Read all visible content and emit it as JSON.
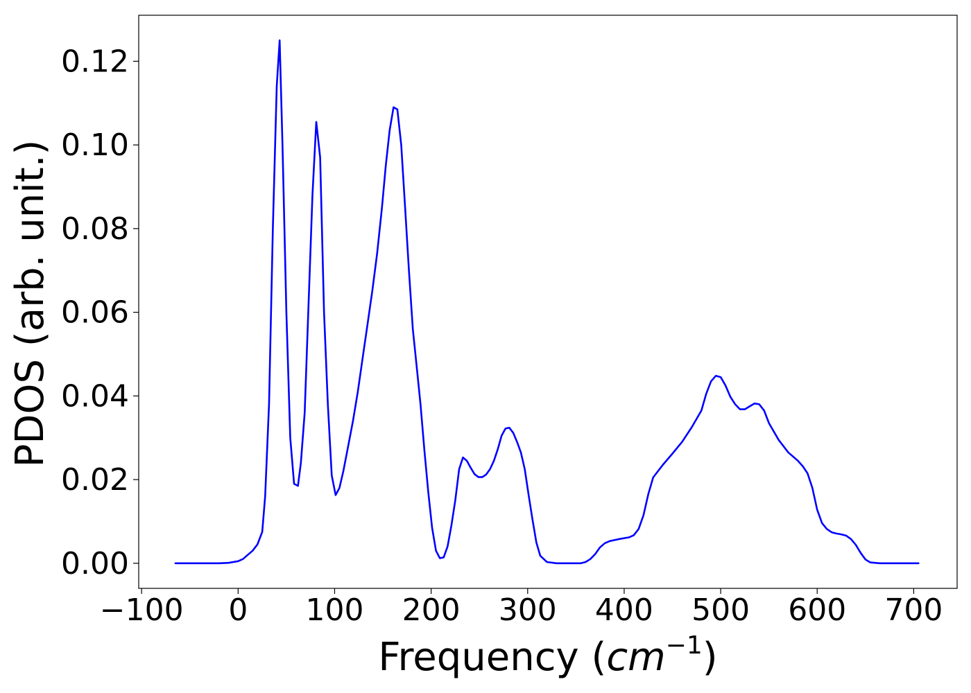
{
  "chart_data": {
    "type": "line",
    "title": "",
    "xlabel": "Frequency (",
    "xlabel_italic": "cm",
    "xlabel_superscript": "−1",
    "xlabel_suffix": ")",
    "ylabel": "PDOS (arb. unit.)",
    "xlim": [
      -103,
      745
    ],
    "ylim": [
      -0.006,
      0.131
    ],
    "x_ticks": [
      -100,
      0,
      100,
      200,
      300,
      400,
      500,
      600,
      700
    ],
    "x_tick_labels": [
      "−100",
      "0",
      "100",
      "200",
      "300",
      "400",
      "500",
      "600",
      "700"
    ],
    "y_ticks": [
      0.0,
      0.02,
      0.04,
      0.06,
      0.08,
      0.1,
      0.12
    ],
    "y_tick_labels": [
      "0.00",
      "0.02",
      "0.04",
      "0.06",
      "0.08",
      "0.10",
      "0.12"
    ],
    "grid": false,
    "legend": "none",
    "line_color": "#0000ff",
    "series": [
      {
        "x": [
          -65,
          -20,
          -10,
          0,
          5,
          10,
          15,
          20,
          25,
          28,
          32,
          36,
          40,
          43,
          46,
          50,
          54,
          58,
          62,
          65,
          69,
          73,
          77,
          81,
          85,
          89,
          93,
          97,
          101,
          105,
          109,
          114,
          119,
          124,
          129,
          134,
          139,
          144,
          149,
          153,
          157,
          161,
          165,
          169,
          173,
          177,
          181,
          185,
          189,
          193,
          197,
          201,
          205,
          209,
          213,
          217,
          221,
          225,
          229,
          233,
          237,
          241,
          245,
          249,
          253,
          257,
          261,
          265,
          269,
          273,
          277,
          281,
          285,
          289,
          293,
          297,
          301,
          305,
          309,
          313,
          320,
          330,
          345,
          355,
          360,
          365,
          370,
          375,
          380,
          385,
          395,
          405,
          410,
          415,
          420,
          425,
          430,
          435,
          440,
          450,
          460,
          470,
          480,
          485,
          490,
          495,
          500,
          505,
          510,
          515,
          520,
          525,
          530,
          535,
          540,
          545,
          550,
          560,
          570,
          580,
          585,
          590,
          595,
          600,
          605,
          610,
          615,
          620,
          625,
          630,
          635,
          640,
          645,
          650,
          655,
          665,
          680,
          705
        ],
        "y": [
          0.0,
          0.0,
          0.0001,
          0.0005,
          0.001,
          0.002,
          0.003,
          0.0045,
          0.0075,
          0.016,
          0.038,
          0.08,
          0.114,
          0.125,
          0.1,
          0.06,
          0.03,
          0.019,
          0.0185,
          0.024,
          0.036,
          0.062,
          0.088,
          0.1055,
          0.097,
          0.06,
          0.038,
          0.021,
          0.0163,
          0.018,
          0.022,
          0.028,
          0.034,
          0.041,
          0.049,
          0.057,
          0.065,
          0.074,
          0.085,
          0.095,
          0.1035,
          0.109,
          0.1085,
          0.1,
          0.085,
          0.07,
          0.056,
          0.047,
          0.038,
          0.027,
          0.017,
          0.0085,
          0.003,
          0.0012,
          0.0014,
          0.004,
          0.009,
          0.015,
          0.0225,
          0.0253,
          0.0245,
          0.0228,
          0.0213,
          0.0206,
          0.0206,
          0.0212,
          0.0225,
          0.0245,
          0.0272,
          0.0305,
          0.0322,
          0.0324,
          0.0312,
          0.029,
          0.0265,
          0.0225,
          0.0163,
          0.0105,
          0.005,
          0.0018,
          0.0003,
          0.0,
          0.0,
          0.0,
          0.0003,
          0.001,
          0.0022,
          0.0038,
          0.0048,
          0.0053,
          0.0058,
          0.0062,
          0.0067,
          0.0082,
          0.0115,
          0.0165,
          0.0205,
          0.022,
          0.0235,
          0.0262,
          0.029,
          0.0325,
          0.0365,
          0.0405,
          0.0435,
          0.0448,
          0.0445,
          0.0425,
          0.0398,
          0.038,
          0.0368,
          0.0368,
          0.0375,
          0.0382,
          0.038,
          0.0365,
          0.0335,
          0.0295,
          0.0265,
          0.0245,
          0.0232,
          0.0215,
          0.018,
          0.0128,
          0.0096,
          0.0082,
          0.0074,
          0.0071,
          0.0069,
          0.0066,
          0.0058,
          0.0044,
          0.0025,
          0.0009,
          0.0002,
          0.0,
          0.0,
          0.0
        ]
      }
    ]
  }
}
